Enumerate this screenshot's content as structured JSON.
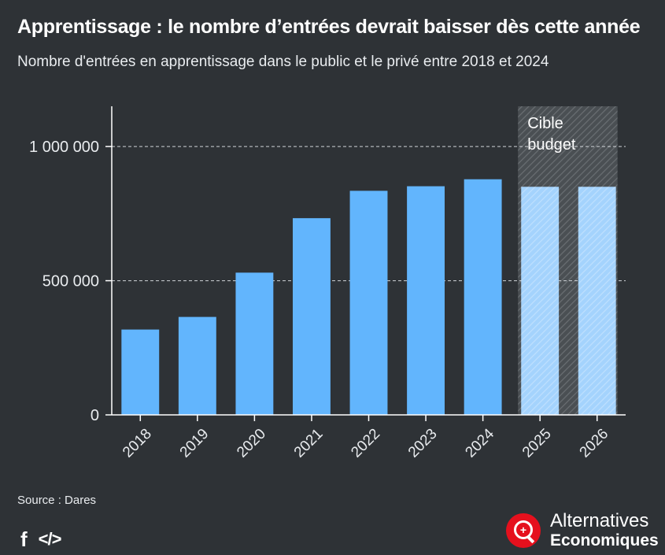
{
  "header": {
    "title": "Apprentissage : le nombre d’entrées devrait baisser dès cette année",
    "subtitle": "Nombre d'entrées en apprentissage dans le public et le privé entre 2018 et 2024"
  },
  "chart_data": {
    "type": "bar",
    "categories": [
      "2018",
      "2019",
      "2020",
      "2021",
      "2022",
      "2023",
      "2024",
      "2025",
      "2026"
    ],
    "values": [
      318000,
      365000,
      530000,
      733000,
      835000,
      852000,
      878000,
      850000,
      850000
    ],
    "projected": [
      false,
      false,
      false,
      false,
      false,
      false,
      false,
      true,
      true
    ],
    "ylim": [
      0,
      1150000
    ],
    "yticks": [
      0,
      500000,
      1000000
    ],
    "ytick_labels": [
      "0",
      "500 000",
      "1 000 000"
    ],
    "grid": true,
    "annotation": {
      "lines": [
        "Cible",
        "budget"
      ],
      "applies_to": [
        "2025",
        "2026"
      ]
    },
    "colors": {
      "bar": "#62b5fd",
      "bar_projected": "#a9d6fe",
      "hatch_region": "#555a5e",
      "background": "#2e3236"
    }
  },
  "footer": {
    "source": "Source : Dares",
    "share_facebook_icon": "f",
    "share_embed_icon": "</>",
    "logo_line1": "Alternatives",
    "logo_line2": "Economiques",
    "logo_color": "#e5101d"
  }
}
